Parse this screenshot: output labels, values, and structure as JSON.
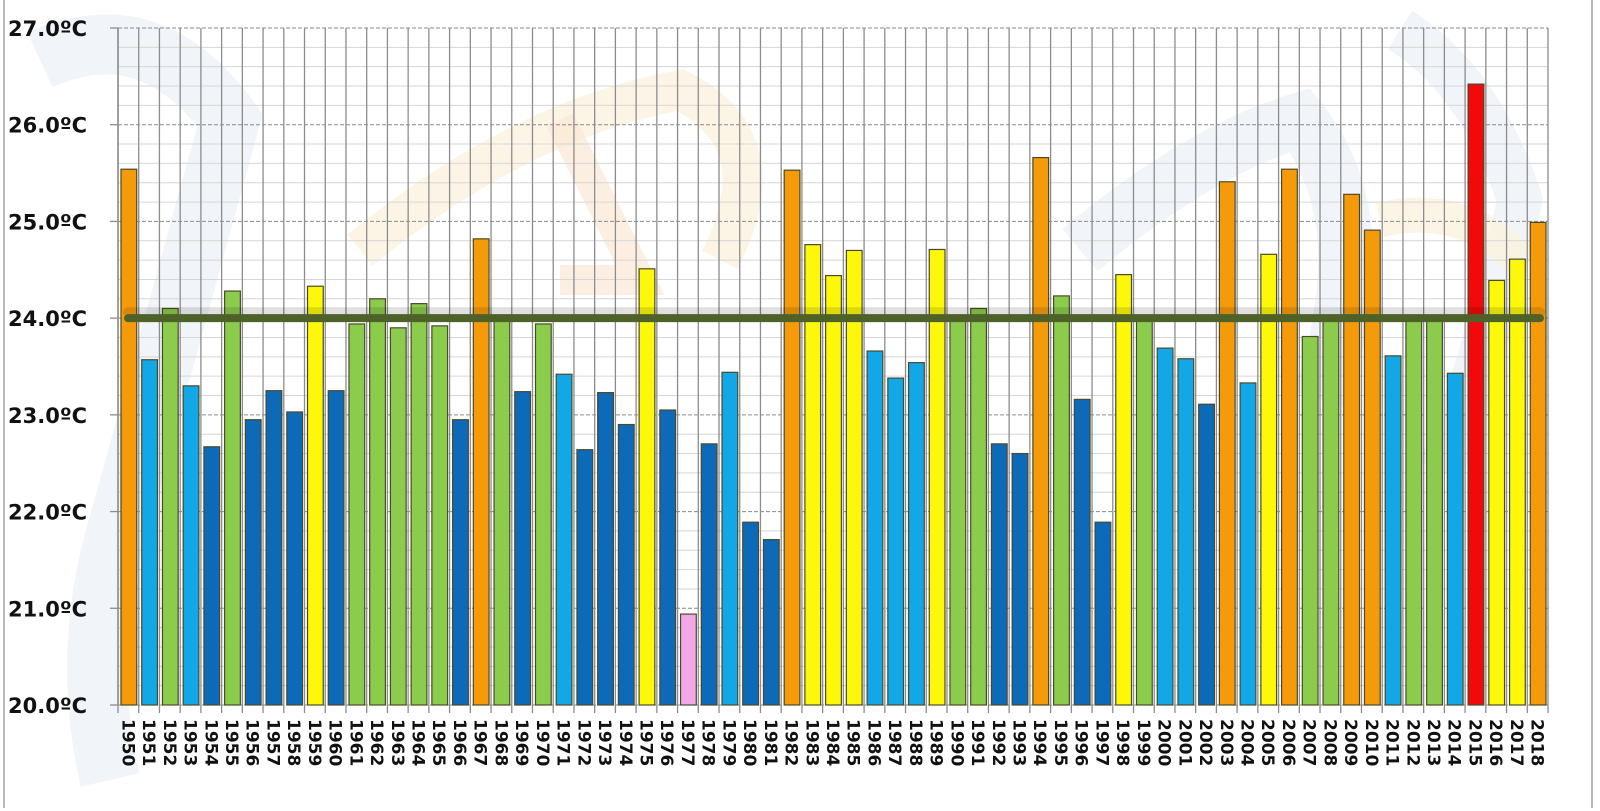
{
  "chart_data": {
    "type": "bar",
    "title": "",
    "xlabel": "",
    "ylabel": "",
    "ylim": [
      20.0,
      27.0
    ],
    "grid": true,
    "yticks": [
      "20.0ºC",
      "21.0ºC",
      "22.0ºC",
      "23.0ºC",
      "24.0ºC",
      "25.0ºC",
      "26.0ºC",
      "27.0ºC"
    ],
    "ytick_values": [
      20,
      21,
      22,
      23,
      24,
      25,
      26,
      27
    ],
    "reference_line": {
      "value": 24.0,
      "color": "#4e6128"
    },
    "categories": [
      "1950",
      "1951",
      "1952",
      "1953",
      "1954",
      "1955",
      "1956",
      "1957",
      "1958",
      "1959",
      "1960",
      "1961",
      "1962",
      "1963",
      "1964",
      "1965",
      "1966",
      "1967",
      "1968",
      "1969",
      "1970",
      "1971",
      "1972",
      "1973",
      "1974",
      "1975",
      "1976",
      "1977",
      "1978",
      "1979",
      "1980",
      "1981",
      "1982",
      "1983",
      "1984",
      "1985",
      "1986",
      "1987",
      "1988",
      "1989",
      "1990",
      "1991",
      "1992",
      "1993",
      "1994",
      "1995",
      "1996",
      "1997",
      "1998",
      "1999",
      "2000",
      "2001",
      "2002",
      "2003",
      "2004",
      "2005",
      "2006",
      "2007",
      "2008",
      "2009",
      "2010",
      "2011",
      "2012",
      "2013",
      "2014",
      "2015",
      "2016",
      "2017",
      "2018"
    ],
    "values": [
      25.54,
      23.57,
      24.1,
      23.3,
      22.67,
      24.28,
      22.95,
      23.25,
      23.03,
      24.33,
      23.25,
      23.94,
      24.2,
      23.9,
      24.15,
      23.92,
      22.95,
      24.82,
      24.0,
      23.24,
      23.94,
      23.42,
      22.64,
      23.23,
      22.9,
      24.51,
      23.05,
      20.94,
      22.7,
      23.44,
      21.89,
      21.71,
      25.53,
      24.76,
      24.44,
      24.7,
      23.66,
      23.38,
      23.54,
      24.71,
      23.97,
      24.1,
      22.7,
      22.6,
      25.66,
      24.23,
      23.16,
      21.89,
      24.45,
      24.0,
      23.69,
      23.58,
      23.11,
      25.41,
      23.33,
      24.66,
      25.54,
      23.81,
      23.97,
      25.28,
      24.91,
      23.61,
      24.0,
      24.0,
      23.43,
      26.42,
      24.39,
      24.61,
      24.99
    ],
    "bar_colors": [
      "orange",
      "lightblue",
      "green",
      "lightblue",
      "darkblue",
      "green",
      "darkblue",
      "darkblue",
      "darkblue",
      "yellow",
      "darkblue",
      "green",
      "green",
      "green",
      "green",
      "green",
      "darkblue",
      "orange",
      "green",
      "darkblue",
      "green",
      "lightblue",
      "darkblue",
      "darkblue",
      "darkblue",
      "yellow",
      "darkblue",
      "pink",
      "darkblue",
      "lightblue",
      "darkblue",
      "darkblue",
      "orange",
      "yellow",
      "yellow",
      "yellow",
      "lightblue",
      "lightblue",
      "lightblue",
      "yellow",
      "green",
      "green",
      "darkblue",
      "darkblue",
      "orange",
      "green",
      "darkblue",
      "darkblue",
      "yellow",
      "green",
      "lightblue",
      "lightblue",
      "darkblue",
      "orange",
      "lightblue",
      "yellow",
      "orange",
      "green",
      "green",
      "orange",
      "orange",
      "lightblue",
      "green",
      "green",
      "lightblue",
      "red",
      "yellow",
      "yellow",
      "orange"
    ],
    "palette": {
      "orange": "#f59b0a",
      "lightblue": "#12a7e6",
      "green": "#8ccc4c",
      "darkblue": "#0d6ab8",
      "yellow": "#fdf80a",
      "pink": "#f2a8e6",
      "red": "#f20a0a"
    }
  }
}
